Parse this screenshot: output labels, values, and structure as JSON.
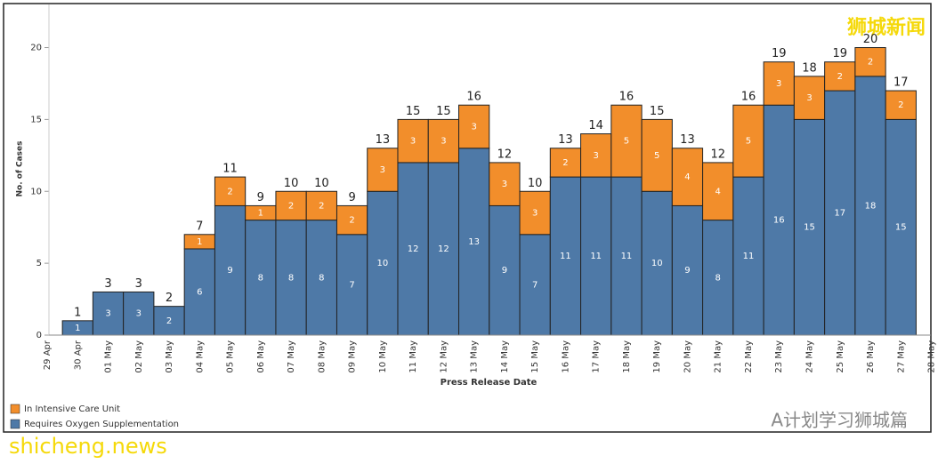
{
  "chart_data": {
    "type": "stacked_bar",
    "x_label": "Press Release Date",
    "y_label": "No. of Cases",
    "categories": [
      "29 Apr",
      "30 Apr",
      "01 May",
      "02 May",
      "03 May",
      "04 May",
      "05 May",
      "06 May",
      "07 May",
      "08 May",
      "09 May",
      "10 May",
      "11 May",
      "12 May",
      "13 May",
      "14 May",
      "15 May",
      "16 May",
      "17 May",
      "18 May",
      "19 May",
      "20 May",
      "21 May",
      "22 May",
      "23 May",
      "24 May",
      "25 May",
      "26 May",
      "27 May",
      "28 May"
    ],
    "series": [
      {
        "name": "Requires Oxygen Supplementation",
        "color": "#4e79a7",
        "values": [
          null,
          1,
          3,
          3,
          2,
          6,
          9,
          8,
          8,
          8,
          7,
          10,
          12,
          12,
          13,
          9,
          7,
          11,
          11,
          11,
          10,
          9,
          8,
          11,
          16,
          15,
          17,
          18,
          15,
          null
        ]
      },
      {
        "name": "In Intensive Care Unit",
        "color": "#f28e2b",
        "values": [
          null,
          null,
          null,
          null,
          null,
          1,
          2,
          1,
          2,
          2,
          2,
          3,
          3,
          3,
          3,
          3,
          3,
          2,
          3,
          5,
          5,
          4,
          4,
          5,
          3,
          3,
          2,
          2,
          2,
          null
        ]
      }
    ],
    "totals": [
      null,
      1,
      3,
      3,
      2,
      7,
      11,
      9,
      10,
      10,
      9,
      13,
      15,
      15,
      16,
      12,
      10,
      13,
      14,
      16,
      15,
      13,
      12,
      16,
      19,
      18,
      19,
      20,
      17,
      null
    ],
    "ylim": [
      0,
      23
    ],
    "yticks": [
      0,
      5,
      10,
      15,
      20
    ],
    "legend": "bottom-left",
    "annotations": [
      "狮城新闻",
      "shicheng.news",
      "A计划学习狮城篇"
    ]
  }
}
